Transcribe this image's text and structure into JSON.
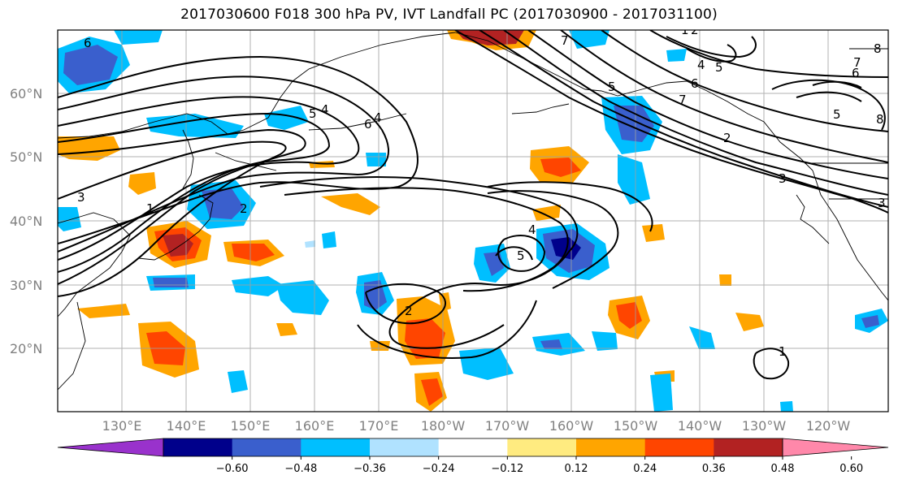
{
  "title": "2017030600 F018 300 hPa PV, IVT Landfall PC (2017030900 - 2017031100)",
  "lat_labels": [
    "60°N",
    "50°N",
    "40°N",
    "30°N",
    "20°N"
  ],
  "lon_labels": [
    "130°E",
    "140°E",
    "150°E",
    "160°E",
    "170°E",
    "180°W",
    "170°W",
    "160°W",
    "150°W",
    "140°W",
    "130°W",
    "120°W"
  ],
  "colorbar": {
    "ticks": [
      "−0.60",
      "−0.48",
      "−0.36",
      "−0.24",
      "−0.12",
      "0.12",
      "0.24",
      "0.36",
      "0.48",
      "0.60"
    ],
    "colors": [
      "#9932cc",
      "#00008b",
      "#3a5fcd",
      "#00bfff",
      "#b0e2ff",
      "#ffffff",
      "#ffeb80",
      "#ffa500",
      "#ff4500",
      "#b22222",
      "#ff88aa"
    ]
  },
  "contour_labels": [
    "6",
    "7",
    "8",
    "6",
    "5",
    "4",
    "3",
    "2",
    "1",
    "5",
    "6",
    "7",
    "2",
    "5",
    "4",
    "3",
    "2",
    "1",
    "4",
    "5",
    "7",
    "8",
    "3",
    "4",
    "5",
    "6",
    "2",
    "1"
  ]
}
